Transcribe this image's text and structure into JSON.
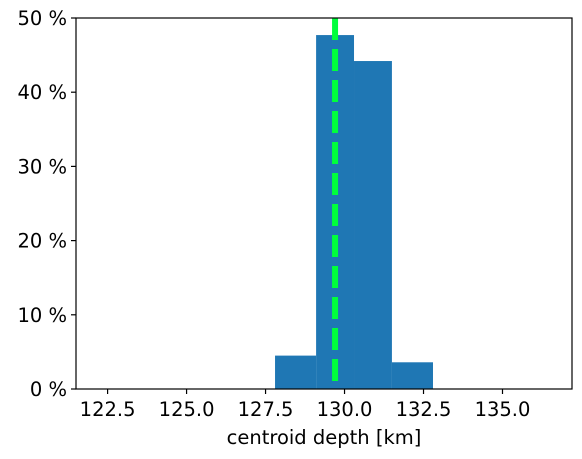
{
  "chart_data": {
    "type": "bar",
    "title": "",
    "xlabel": "centroid depth [km]",
    "ylabel": "",
    "xlim": [
      121.5,
      137.2
    ],
    "ylim": [
      0,
      50
    ],
    "x_ticks": [
      122.5,
      125.0,
      127.5,
      130.0,
      132.5,
      135.0
    ],
    "x_tick_labels": [
      "122.5",
      "125.0",
      "127.5",
      "130.0",
      "132.5",
      "135.0"
    ],
    "y_ticks": [
      0,
      10,
      20,
      30,
      40,
      50
    ],
    "y_tick_labels": [
      "0 %",
      "10 %",
      "20 %",
      "30 %",
      "40 %",
      "50 %"
    ],
    "bins": [
      {
        "start": 127.8,
        "end": 129.1,
        "value": 4.5
      },
      {
        "start": 129.1,
        "end": 130.3,
        "value": 47.7
      },
      {
        "start": 130.3,
        "end": 131.5,
        "value": 44.2
      },
      {
        "start": 131.5,
        "end": 132.8,
        "value": 3.6
      }
    ],
    "reference_line": {
      "x": 129.7,
      "style": "dashed"
    },
    "grid": false,
    "colors": {
      "bars": "#1f77b4",
      "reference_line": "#00ff3c",
      "axes": "#000000"
    }
  }
}
